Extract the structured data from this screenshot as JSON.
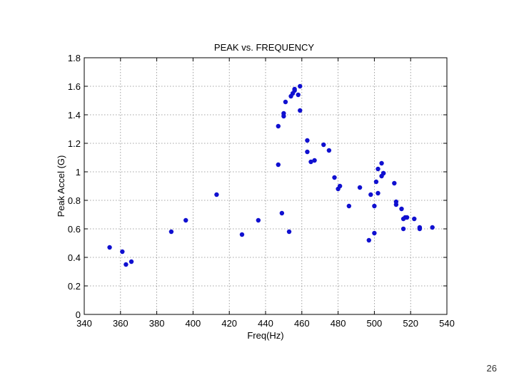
{
  "page": {
    "number": "26"
  },
  "chart_data": {
    "type": "scatter",
    "title": "PEAK vs. FREQUENCY",
    "xlabel": "Freq(Hz)",
    "ylabel": "Peak Accel (G)",
    "xlim": [
      340,
      540
    ],
    "ylim": [
      0,
      1.8
    ],
    "xticks": [
      340,
      360,
      380,
      400,
      420,
      440,
      460,
      480,
      500,
      520,
      540
    ],
    "yticks": [
      0,
      0.2,
      0.4,
      0.6,
      0.8,
      1,
      1.2,
      1.4,
      1.6,
      1.8
    ],
    "grid": true,
    "legend": "none",
    "marker_color": "#1010d0",
    "series": [
      {
        "x": [
          354,
          361,
          363,
          366,
          388,
          396,
          413,
          427,
          436,
          447,
          447,
          449,
          450,
          450,
          451,
          453,
          454,
          455,
          456,
          456,
          458,
          459,
          459,
          463,
          463,
          465,
          467,
          472,
          475,
          478,
          480,
          481,
          486,
          492,
          497,
          498,
          500,
          500,
          501,
          502,
          502,
          504,
          504,
          505,
          505,
          511,
          512,
          512,
          515,
          516,
          516,
          517,
          518,
          522,
          525,
          525,
          532
        ],
        "y": [
          0.47,
          0.44,
          0.35,
          0.37,
          0.58,
          0.66,
          0.84,
          0.56,
          0.66,
          1.32,
          1.05,
          0.71,
          1.39,
          1.41,
          1.49,
          0.58,
          1.53,
          1.55,
          1.58,
          1.57,
          1.54,
          1.6,
          1.43,
          1.22,
          1.14,
          1.07,
          1.08,
          1.19,
          1.15,
          0.96,
          0.88,
          0.9,
          0.76,
          0.89,
          0.52,
          0.84,
          0.76,
          0.57,
          0.93,
          1.02,
          0.85,
          0.97,
          1.06,
          0.99,
          0.99,
          0.92,
          0.79,
          0.77,
          0.74,
          0.6,
          0.67,
          0.68,
          0.68,
          0.67,
          0.61,
          0.6,
          0.61
        ]
      }
    ]
  }
}
